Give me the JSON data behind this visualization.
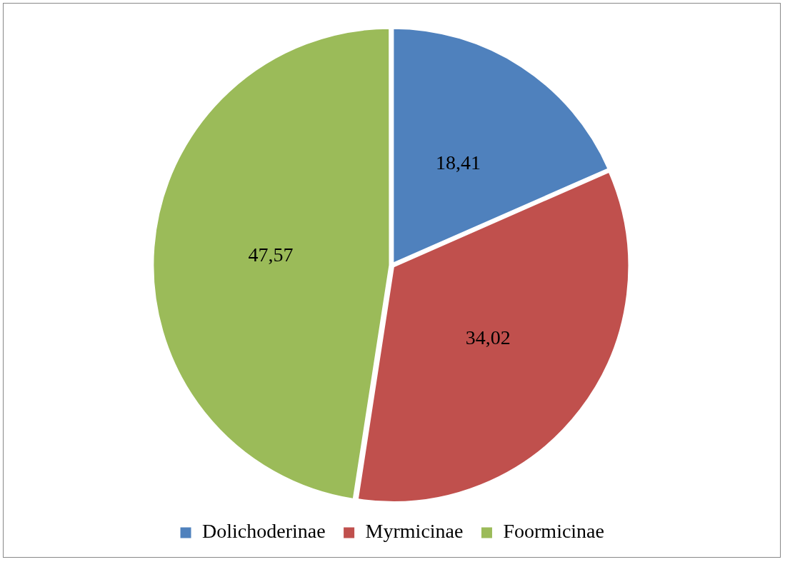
{
  "chart_data": {
    "type": "pie",
    "categories": [
      "Dolichoderinae",
      "Myrmicinae",
      "Foormicinae"
    ],
    "values": [
      18.41,
      34.02,
      47.57
    ],
    "value_labels": [
      "18,41",
      "34,02",
      "47,57"
    ],
    "colors": [
      "#4f81bd",
      "#c0504d",
      "#9bbb59"
    ],
    "legend": "bottom"
  }
}
